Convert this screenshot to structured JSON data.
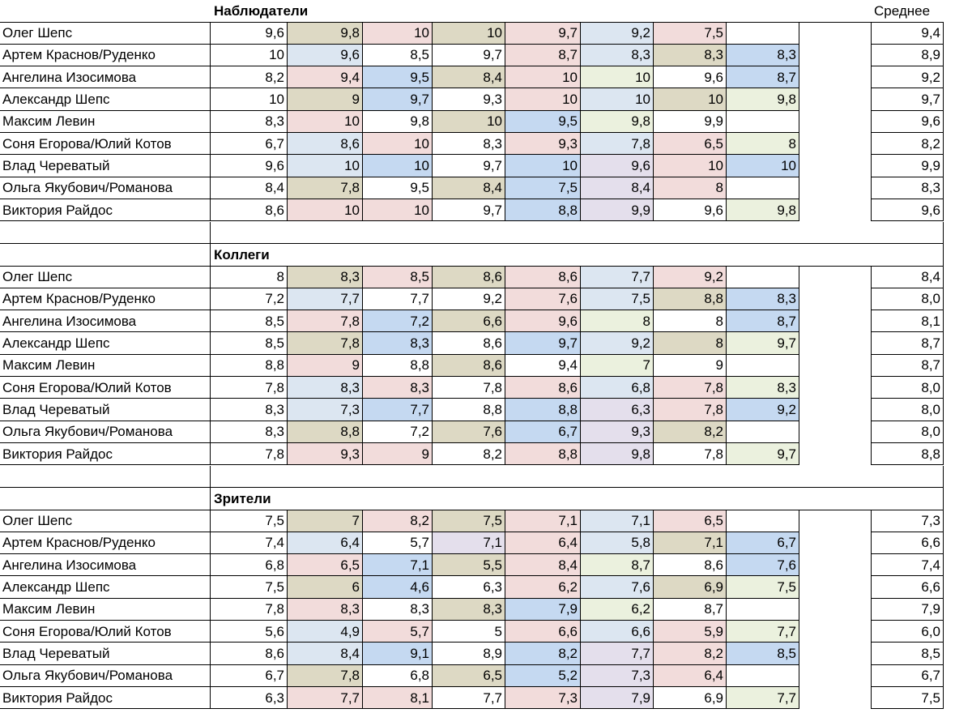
{
  "sheet": {
    "average_header": "Среднее",
    "colors": {
      "tan": "#ddd9c4",
      "pink": "#f2dcdb",
      "lightblue": "#dce6f1",
      "blue": "#c5d9f1",
      "green": "#ebf1de",
      "lavender": "#e4dfec",
      "white": "#ffffff"
    },
    "sections": [
      {
        "title": "Наблюдатели",
        "rows": [
          {
            "name": "Олег Шепс",
            "values": [
              "9,6",
              "9,8",
              "10",
              "10",
              "9,7",
              "9,2",
              "7,5",
              ""
            ],
            "colors": [
              "white",
              "tan",
              "pink",
              "tan",
              "pink",
              "lightblue",
              "pink",
              "white"
            ],
            "avg": "9,4"
          },
          {
            "name": "Артем Краснов/Руденко",
            "values": [
              "10",
              "9,6",
              "8,5",
              "9,7",
              "8,7",
              "8,3",
              "8,3",
              "8,3"
            ],
            "colors": [
              "white",
              "lightblue",
              "white",
              "white",
              "pink",
              "lightblue",
              "tan",
              "blue"
            ],
            "avg": "8,9"
          },
          {
            "name": "Ангелина Изосимова",
            "values": [
              "8,2",
              "9,4",
              "9,5",
              "8,4",
              "10",
              "10",
              "9,6",
              "8,7"
            ],
            "colors": [
              "white",
              "pink",
              "blue",
              "tan",
              "pink",
              "green",
              "white",
              "blue"
            ],
            "avg": "9,2"
          },
          {
            "name": "Александр Шепс",
            "values": [
              "10",
              "9",
              "9,7",
              "9,3",
              "10",
              "10",
              "10",
              "9,8"
            ],
            "colors": [
              "white",
              "tan",
              "blue",
              "white",
              "pink",
              "lightblue",
              "tan",
              "green"
            ],
            "avg": "9,7"
          },
          {
            "name": "Максим Левин",
            "values": [
              "8,3",
              "10",
              "9,8",
              "10",
              "9,5",
              "9,8",
              "9,9",
              ""
            ],
            "colors": [
              "white",
              "pink",
              "white",
              "tan",
              "blue",
              "green",
              "white",
              "white"
            ],
            "avg": "9,6"
          },
          {
            "name": "Соня Егорова/Юлий Котов",
            "values": [
              "6,7",
              "8,6",
              "10",
              "8,3",
              "9,3",
              "7,8",
              "6,5",
              "8"
            ],
            "colors": [
              "white",
              "lightblue",
              "pink",
              "white",
              "pink",
              "lightblue",
              "pink",
              "green"
            ],
            "avg": "8,2"
          },
          {
            "name": "Влад Череватый",
            "values": [
              "9,6",
              "10",
              "10",
              "9,7",
              "10",
              "9,6",
              "10",
              "10"
            ],
            "colors": [
              "white",
              "lightblue",
              "blue",
              "white",
              "blue",
              "lavender",
              "pink",
              "blue"
            ],
            "avg": "9,9"
          },
          {
            "name": "Ольга Якубович/Романова",
            "values": [
              "8,4",
              "7,8",
              "9,5",
              "8,4",
              "7,5",
              "8,4",
              "8",
              ""
            ],
            "colors": [
              "white",
              "tan",
              "white",
              "tan",
              "blue",
              "lavender",
              "pink",
              "white"
            ],
            "avg": "8,3"
          },
          {
            "name": "Виктория Райдос",
            "values": [
              "8,6",
              "10",
              "10",
              "9,7",
              "8,8",
              "9,9",
              "9,6",
              "9,8"
            ],
            "colors": [
              "white",
              "pink",
              "pink",
              "white",
              "blue",
              "lavender",
              "white",
              "green"
            ],
            "avg": "9,6"
          }
        ]
      },
      {
        "title": "Коллеги",
        "rows": [
          {
            "name": "Олег Шепс",
            "values": [
              "8",
              "8,3",
              "8,5",
              "8,6",
              "8,6",
              "7,7",
              "9,2",
              ""
            ],
            "colors": [
              "white",
              "tan",
              "pink",
              "tan",
              "pink",
              "lightblue",
              "pink",
              "white"
            ],
            "avg": "8,4"
          },
          {
            "name": "Артем Краснов/Руденко",
            "values": [
              "7,2",
              "7,7",
              "7,7",
              "9,2",
              "7,6",
              "7,5",
              "8,8",
              "8,3"
            ],
            "colors": [
              "white",
              "lightblue",
              "white",
              "white",
              "pink",
              "lightblue",
              "tan",
              "blue"
            ],
            "avg": "8,0"
          },
          {
            "name": "Ангелина Изосимова",
            "values": [
              "8,5",
              "7,8",
              "7,2",
              "6,6",
              "9,6",
              "8",
              "8",
              "8,7"
            ],
            "colors": [
              "white",
              "pink",
              "blue",
              "tan",
              "pink",
              "green",
              "white",
              "blue"
            ],
            "avg": "8,1"
          },
          {
            "name": "Александр Шепс",
            "values": [
              "8,5",
              "7,8",
              "8,3",
              "8,6",
              "9,7",
              "9,2",
              "8",
              "9,7"
            ],
            "colors": [
              "white",
              "tan",
              "blue",
              "white",
              "blue",
              "lightblue",
              "tan",
              "green"
            ],
            "avg": "8,7"
          },
          {
            "name": "Максим Левин",
            "values": [
              "8,8",
              "9",
              "8,8",
              "8,6",
              "9,4",
              "7",
              "9",
              ""
            ],
            "colors": [
              "white",
              "pink",
              "white",
              "tan",
              "white",
              "green",
              "white",
              "white"
            ],
            "avg": "8,7"
          },
          {
            "name": "Соня Егорова/Юлий Котов",
            "values": [
              "7,8",
              "8,3",
              "8,3",
              "7,8",
              "8,6",
              "6,8",
              "7,8",
              "8,3"
            ],
            "colors": [
              "white",
              "lightblue",
              "pink",
              "white",
              "pink",
              "lightblue",
              "pink",
              "green"
            ],
            "avg": "8,0"
          },
          {
            "name": "Влад Череватый",
            "values": [
              "8,3",
              "7,3",
              "7,7",
              "8,8",
              "8,8",
              "6,3",
              "7,8",
              "9,2"
            ],
            "colors": [
              "white",
              "lightblue",
              "blue",
              "white",
              "blue",
              "lavender",
              "pink",
              "blue"
            ],
            "avg": "8,0"
          },
          {
            "name": "Ольга Якубович/Романова",
            "values": [
              "8,3",
              "8,8",
              "7,2",
              "7,6",
              "6,7",
              "9,3",
              "8,2",
              ""
            ],
            "colors": [
              "white",
              "tan",
              "white",
              "tan",
              "blue",
              "lavender",
              "tan",
              "white"
            ],
            "avg": "8,0"
          },
          {
            "name": "Виктория Райдос",
            "values": [
              "7,8",
              "9,3",
              "9",
              "8,2",
              "8,8",
              "9,8",
              "7,8",
              "9,7"
            ],
            "colors": [
              "white",
              "pink",
              "pink",
              "white",
              "pink",
              "lavender",
              "white",
              "green"
            ],
            "avg": "8,8"
          }
        ]
      },
      {
        "title": "Зрители",
        "rows": [
          {
            "name": "Олег Шепс",
            "values": [
              "7,5",
              "7",
              "8,2",
              "7,5",
              "7,1",
              "7,1",
              "6,5",
              ""
            ],
            "colors": [
              "white",
              "tan",
              "pink",
              "tan",
              "pink",
              "lightblue",
              "pink",
              "white"
            ],
            "avg": "7,3"
          },
          {
            "name": "Артем Краснов/Руденко",
            "values": [
              "7,4",
              "6,4",
              "5,7",
              "7,1",
              "6,4",
              "5,8",
              "7,1",
              "6,7"
            ],
            "colors": [
              "white",
              "lightblue",
              "white",
              "lavender",
              "pink",
              "lightblue",
              "tan",
              "blue"
            ],
            "avg": "6,6"
          },
          {
            "name": "Ангелина Изосимова",
            "values": [
              "6,8",
              "6,5",
              "7,1",
              "5,5",
              "8,4",
              "8,7",
              "8,6",
              "7,6"
            ],
            "colors": [
              "white",
              "pink",
              "blue",
              "tan",
              "pink",
              "green",
              "white",
              "blue"
            ],
            "avg": "7,4"
          },
          {
            "name": "Александр Шепс",
            "values": [
              "7,5",
              "6",
              "4,6",
              "6,3",
              "6,2",
              "7,6",
              "6,9",
              "7,5"
            ],
            "colors": [
              "white",
              "tan",
              "blue",
              "white",
              "pink",
              "lightblue",
              "tan",
              "green"
            ],
            "avg": "6,6"
          },
          {
            "name": "Максим Левин",
            "values": [
              "7,8",
              "8,3",
              "8,3",
              "8,3",
              "7,9",
              "6,2",
              "8,7",
              ""
            ],
            "colors": [
              "white",
              "pink",
              "white",
              "tan",
              "blue",
              "green",
              "white",
              "white"
            ],
            "avg": "7,9"
          },
          {
            "name": "Соня Егорова/Юлий Котов",
            "values": [
              "5,6",
              "4,9",
              "5,7",
              "5",
              "6,6",
              "6,6",
              "5,9",
              "7,7"
            ],
            "colors": [
              "white",
              "lightblue",
              "pink",
              "white",
              "pink",
              "lightblue",
              "pink",
              "green"
            ],
            "avg": "6,0"
          },
          {
            "name": "Влад Череватый",
            "values": [
              "8,6",
              "8,4",
              "9,1",
              "8,9",
              "8,2",
              "7,7",
              "8,2",
              "8,5"
            ],
            "colors": [
              "white",
              "lightblue",
              "blue",
              "white",
              "blue",
              "lavender",
              "pink",
              "blue"
            ],
            "avg": "8,5"
          },
          {
            "name": "Ольга Якубович/Романова",
            "values": [
              "6,7",
              "7,8",
              "6,8",
              "6,5",
              "5,2",
              "7,3",
              "6,4",
              ""
            ],
            "colors": [
              "white",
              "tan",
              "white",
              "tan",
              "blue",
              "lavender",
              "pink",
              "white"
            ],
            "avg": "6,7"
          },
          {
            "name": "Виктория Райдос",
            "values": [
              "6,3",
              "7,7",
              "8,1",
              "7,7",
              "7,3",
              "7,9",
              "6,9",
              "7,7"
            ],
            "colors": [
              "white",
              "pink",
              "pink",
              "white",
              "pink",
              "lavender",
              "white",
              "green"
            ],
            "avg": "7,5"
          }
        ]
      }
    ]
  }
}
